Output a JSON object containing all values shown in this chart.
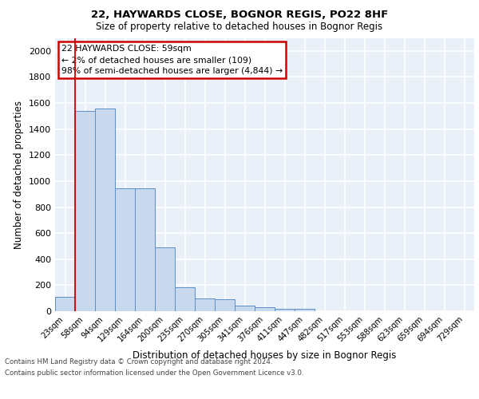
{
  "title1": "22, HAYWARDS CLOSE, BOGNOR REGIS, PO22 8HF",
  "title2": "Size of property relative to detached houses in Bognor Regis",
  "xlabel": "Distribution of detached houses by size in Bognor Regis",
  "ylabel": "Number of detached properties",
  "bin_labels": [
    "23sqm",
    "58sqm",
    "94sqm",
    "129sqm",
    "164sqm",
    "200sqm",
    "235sqm",
    "270sqm",
    "305sqm",
    "341sqm",
    "376sqm",
    "411sqm",
    "447sqm",
    "482sqm",
    "517sqm",
    "553sqm",
    "588sqm",
    "623sqm",
    "659sqm",
    "694sqm",
    "729sqm"
  ],
  "bar_heights": [
    110,
    1540,
    1560,
    945,
    945,
    490,
    185,
    100,
    95,
    40,
    30,
    20,
    20,
    0,
    0,
    0,
    0,
    0,
    0,
    0,
    0
  ],
  "bar_color": "#c9d9ed",
  "bar_edge_color": "#5b8fc9",
  "ylim": [
    0,
    2100
  ],
  "yticks": [
    0,
    200,
    400,
    600,
    800,
    1000,
    1200,
    1400,
    1600,
    1800,
    2000
  ],
  "vline_color": "#cc0000",
  "annotation_text": "22 HAYWARDS CLOSE: 59sqm\n← 2% of detached houses are smaller (109)\n98% of semi-detached houses are larger (4,844) →",
  "annotation_box_color": "white",
  "annotation_box_edge": "#cc0000",
  "footer1": "Contains HM Land Registry data © Crown copyright and database right 2024.",
  "footer2": "Contains public sector information licensed under the Open Government Licence v3.0.",
  "bg_color": "#eaf0f8",
  "grid_color": "white"
}
